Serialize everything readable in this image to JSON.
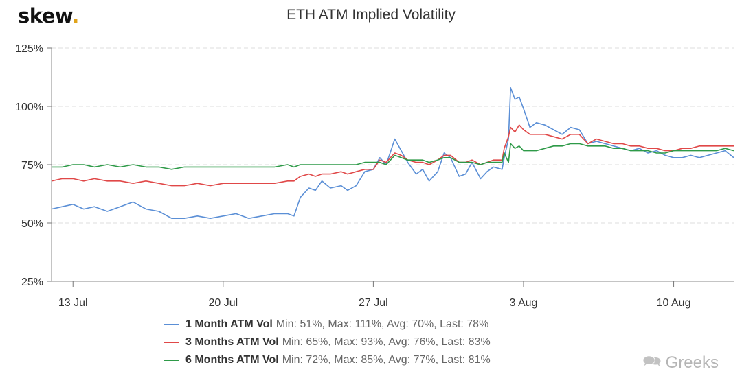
{
  "brand": {
    "name": "skew",
    "dot": "."
  },
  "watermark": {
    "icon": "wechat-bubbles-icon",
    "text": "Greeks"
  },
  "colors": {
    "series1": "#5b8fd6",
    "series2": "#e04848",
    "series3": "#2e9a48",
    "grid": "#dddddd",
    "axis": "#333333"
  },
  "chart_data": {
    "type": "line",
    "title": "ETH ATM Implied Volatility",
    "xlabel": "",
    "ylabel": "",
    "ylim": [
      25,
      125
    ],
    "yticks": [
      "25%",
      "50%",
      "75%",
      "100%",
      "125%"
    ],
    "xlim": [
      12.0,
      43.8
    ],
    "xticks": [
      {
        "x": 13,
        "label": "13 Jul"
      },
      {
        "x": 20,
        "label": "20 Jul"
      },
      {
        "x": 27,
        "label": "27 Jul"
      },
      {
        "x": 34,
        "label": "3 Aug"
      },
      {
        "x": 41,
        "label": "10 Aug"
      }
    ],
    "grid": "horizontal dashed",
    "legend_position": "bottom",
    "series": [
      {
        "name": "1 Month ATM Vol",
        "stats": "Min: 51%, Max: 111%, Avg: 70%, Last: 78%",
        "x": [
          12.0,
          12.5,
          13.0,
          13.5,
          14.0,
          14.6,
          15.2,
          15.8,
          16.4,
          17.0,
          17.6,
          18.2,
          18.8,
          19.4,
          20.0,
          20.6,
          21.2,
          21.8,
          22.4,
          23.0,
          23.3,
          23.6,
          24.0,
          24.3,
          24.6,
          25.0,
          25.5,
          25.8,
          26.2,
          26.6,
          27.0,
          27.3,
          27.6,
          28.0,
          28.3,
          28.6,
          29.0,
          29.3,
          29.6,
          30.0,
          30.3,
          30.6,
          31.0,
          31.3,
          31.6,
          32.0,
          32.3,
          32.6,
          33.0,
          33.1,
          33.3,
          33.4,
          33.6,
          33.8,
          34.0,
          34.3,
          34.6,
          35.0,
          35.4,
          35.8,
          36.2,
          36.6,
          37.0,
          37.4,
          37.8,
          38.2,
          38.6,
          39.0,
          39.4,
          39.8,
          40.2,
          40.6,
          41.0,
          41.4,
          41.8,
          42.2,
          42.6,
          43.0,
          43.4,
          43.8
        ],
        "values": [
          56,
          57,
          58,
          56,
          57,
          55,
          57,
          59,
          56,
          55,
          52,
          52,
          53,
          52,
          53,
          54,
          52,
          53,
          54,
          54,
          53,
          61,
          65,
          64,
          68,
          65,
          66,
          64,
          66,
          72,
          73,
          78,
          75,
          86,
          81,
          76,
          71,
          73,
          68,
          72,
          80,
          78,
          70,
          71,
          76,
          69,
          72,
          74,
          73,
          78,
          86,
          108,
          103,
          104,
          99,
          91,
          93,
          92,
          90,
          88,
          91,
          90,
          84,
          85,
          84,
          83,
          82,
          81,
          82,
          80,
          81,
          79,
          78,
          78,
          79,
          78,
          79,
          80,
          81,
          78
        ]
      },
      {
        "name": "3 Months ATM Vol",
        "stats": "Min: 65%, Max: 93%, Avg: 76%, Last: 83%",
        "x": [
          12.0,
          12.5,
          13.0,
          13.5,
          14.0,
          14.6,
          15.2,
          15.8,
          16.4,
          17.0,
          17.6,
          18.2,
          18.8,
          19.4,
          20.0,
          20.6,
          21.2,
          21.8,
          22.4,
          23.0,
          23.3,
          23.6,
          24.0,
          24.3,
          24.6,
          25.0,
          25.5,
          25.8,
          26.2,
          26.6,
          27.0,
          27.3,
          27.6,
          28.0,
          28.3,
          28.6,
          29.0,
          29.3,
          29.6,
          30.0,
          30.3,
          30.6,
          31.0,
          31.3,
          31.6,
          32.0,
          32.3,
          32.6,
          33.0,
          33.1,
          33.3,
          33.4,
          33.6,
          33.8,
          34.0,
          34.3,
          34.6,
          35.0,
          35.4,
          35.8,
          36.2,
          36.6,
          37.0,
          37.4,
          37.8,
          38.2,
          38.6,
          39.0,
          39.4,
          39.8,
          40.2,
          40.6,
          41.0,
          41.4,
          41.8,
          42.2,
          42.6,
          43.0,
          43.4,
          43.8
        ],
        "values": [
          68,
          69,
          69,
          68,
          69,
          68,
          68,
          67,
          68,
          67,
          66,
          66,
          67,
          66,
          67,
          67,
          67,
          67,
          67,
          68,
          68,
          70,
          71,
          70,
          71,
          71,
          72,
          71,
          72,
          73,
          73,
          77,
          76,
          80,
          79,
          77,
          76,
          76,
          75,
          77,
          79,
          79,
          76,
          76,
          77,
          75,
          76,
          77,
          77,
          82,
          87,
          91,
          89,
          92,
          90,
          88,
          88,
          88,
          87,
          86,
          88,
          88,
          84,
          86,
          85,
          84,
          84,
          83,
          83,
          82,
          82,
          81,
          81,
          82,
          82,
          83,
          83,
          83,
          83,
          83
        ]
      },
      {
        "name": "6 Months ATM Vol",
        "stats": "Min: 72%, Max: 85%, Avg: 77%, Last: 81%",
        "x": [
          12.0,
          12.5,
          13.0,
          13.5,
          14.0,
          14.6,
          15.2,
          15.8,
          16.4,
          17.0,
          17.6,
          18.2,
          18.8,
          19.4,
          20.0,
          20.6,
          21.2,
          21.8,
          22.4,
          23.0,
          23.3,
          23.6,
          24.0,
          24.3,
          24.6,
          25.0,
          25.5,
          25.8,
          26.2,
          26.6,
          27.0,
          27.3,
          27.6,
          28.0,
          28.3,
          28.6,
          29.0,
          29.3,
          29.6,
          30.0,
          30.3,
          30.6,
          31.0,
          31.3,
          31.6,
          32.0,
          32.3,
          32.6,
          33.0,
          33.1,
          33.3,
          33.4,
          33.6,
          33.8,
          34.0,
          34.3,
          34.6,
          35.0,
          35.4,
          35.8,
          36.2,
          36.6,
          37.0,
          37.4,
          37.8,
          38.2,
          38.6,
          39.0,
          39.4,
          39.8,
          40.2,
          40.6,
          41.0,
          41.4,
          41.8,
          42.2,
          42.6,
          43.0,
          43.4,
          43.8
        ],
        "values": [
          74,
          74,
          75,
          75,
          74,
          75,
          74,
          75,
          74,
          74,
          73,
          74,
          74,
          74,
          74,
          74,
          74,
          74,
          74,
          75,
          74,
          75,
          75,
          75,
          75,
          75,
          75,
          75,
          75,
          76,
          76,
          76,
          75,
          79,
          78,
          77,
          77,
          77,
          76,
          77,
          78,
          78,
          76,
          76,
          76,
          75,
          76,
          76,
          76,
          80,
          76,
          84,
          82,
          83,
          81,
          81,
          81,
          82,
          83,
          83,
          84,
          84,
          83,
          83,
          83,
          82,
          82,
          81,
          81,
          81,
          80,
          80,
          81,
          81,
          81,
          81,
          81,
          81,
          82,
          81
        ]
      }
    ]
  }
}
